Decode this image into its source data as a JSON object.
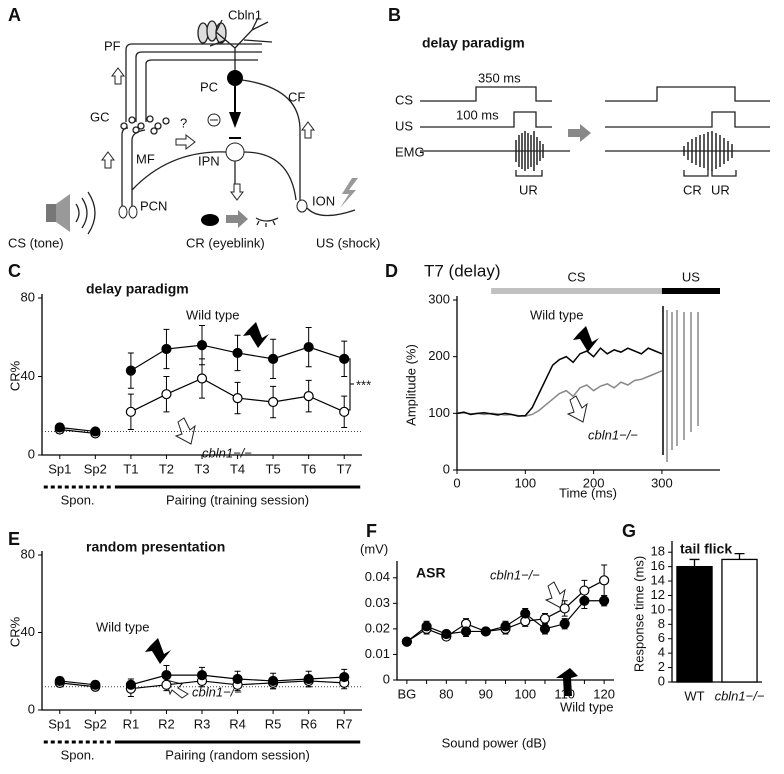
{
  "diagram_a": {
    "panel": "A",
    "labels": {
      "cbln1": "Cbln1",
      "pf": "PF",
      "gc": "GC",
      "pc": "PC",
      "cf": "CF",
      "mf": "MF",
      "question": "?",
      "ipn": "IPN",
      "pcn": "PCN",
      "ion": "ION",
      "cs": "CS (tone)",
      "cr": "CR (eyeblink)",
      "us": "US (shock)"
    }
  },
  "diagram_b": {
    "panel": "B",
    "title": "delay paradigm",
    "durations": [
      "350 ms",
      "100 ms"
    ],
    "rows": [
      "CS",
      "US",
      "EMG"
    ],
    "responses": [
      "UR",
      "CR",
      "UR"
    ]
  },
  "chart_data": [
    {
      "panel": "C",
      "type": "line",
      "title": "delay paradigm",
      "ylabel": "CR%",
      "markers": true,
      "line_color": "#000000",
      "categories": [
        "Sp1",
        "Sp2",
        "T1",
        "T2",
        "T3",
        "T4",
        "T5",
        "T6",
        "T7"
      ],
      "ylim": [
        0,
        80
      ],
      "yticks": [
        0,
        40,
        80
      ],
      "ref_line": 12,
      "groups": [
        {
          "label": "Spon.",
          "count": 2,
          "style": "dotted"
        },
        {
          "label": "Pairing (training session)",
          "count": 7,
          "style": "solid"
        }
      ],
      "series": [
        {
          "name": "Wild type",
          "color": "#000000",
          "values": [
            14,
            12,
            43,
            54,
            56,
            52,
            49,
            55,
            49
          ],
          "errors": [
            2,
            1.5,
            9,
            10,
            10,
            9,
            10,
            10,
            9
          ]
        },
        {
          "name": "cbln1−/−",
          "color": "#ffffff",
          "values": [
            13,
            11,
            22,
            31,
            39,
            29,
            27,
            30,
            22
          ],
          "errors": [
            2,
            1.5,
            9,
            9,
            10,
            8,
            8,
            8,
            8
          ]
        }
      ],
      "annotations": [
        "***"
      ]
    },
    {
      "panel": "D",
      "type": "line",
      "title": "T7 (delay)",
      "xlabel": "Time (ms)",
      "ylabel": "Amplitude (%)",
      "x": [
        0,
        10,
        20,
        30,
        40,
        50,
        60,
        70,
        80,
        90,
        100,
        110,
        120,
        130,
        140,
        150,
        160,
        170,
        180,
        190,
        200,
        210,
        220,
        230,
        240,
        250,
        260,
        270,
        280,
        290,
        300
      ],
      "xlim": [
        0,
        385
      ],
      "xticks": [
        0,
        100,
        200,
        300
      ],
      "ylim": [
        0,
        300
      ],
      "yticks": [
        0,
        100,
        200,
        300
      ],
      "spans": [
        {
          "label": "CS",
          "range": [
            50,
            300
          ],
          "color": "#c0c0c0"
        },
        {
          "label": "US",
          "range": [
            300,
            385
          ],
          "color": "#000000"
        }
      ],
      "series": [
        {
          "name": "Wild type",
          "color": "#000000",
          "values": [
            100,
            102,
            98,
            100,
            101,
            99,
            97,
            100,
            98,
            95,
            96,
            110,
            135,
            160,
            185,
            195,
            200,
            190,
            205,
            210,
            200,
            215,
            205,
            212,
            208,
            215,
            210,
            205,
            215,
            210,
            205
          ]
        },
        {
          "name": "cbln1−/−",
          "color": "#888888",
          "values": [
            100,
            101,
            99,
            100,
            98,
            100,
            99,
            97,
            98,
            96,
            95,
            98,
            105,
            115,
            125,
            135,
            140,
            130,
            145,
            150,
            140,
            148,
            152,
            145,
            155,
            150,
            158,
            160,
            165,
            170,
            175
          ]
        }
      ]
    },
    {
      "panel": "E",
      "type": "line",
      "title": "random presentation",
      "ylabel": "CR%",
      "markers": true,
      "line_color": "#000000",
      "categories": [
        "Sp1",
        "Sp2",
        "R1",
        "R2",
        "R3",
        "R4",
        "R5",
        "R6",
        "R7"
      ],
      "ylim": [
        0,
        80
      ],
      "yticks": [
        0,
        40,
        80
      ],
      "ref_line": 12,
      "groups": [
        {
          "label": "Spon.",
          "count": 2,
          "style": "dotted"
        },
        {
          "label": "Pairing (random session)",
          "count": 7,
          "style": "solid"
        }
      ],
      "series": [
        {
          "name": "Wild type",
          "color": "#000000",
          "values": [
            15,
            13,
            13,
            18,
            18,
            16,
            15,
            16,
            17
          ],
          "errors": [
            2,
            2,
            3,
            5,
            4,
            4,
            4,
            4,
            4
          ]
        },
        {
          "name": "cbln1−/−",
          "color": "#ffffff",
          "values": [
            14,
            12,
            11,
            13,
            15,
            13,
            14,
            15,
            14
          ],
          "errors": [
            2,
            2,
            4,
            3,
            3,
            3,
            3,
            3,
            3
          ]
        }
      ]
    },
    {
      "panel": "F",
      "type": "line",
      "title": "ASR",
      "xlabel": "Sound power (dB)",
      "ylabel": "(mV)",
      "markers": true,
      "line_color": "#000000",
      "categories": [
        "BG",
        null,
        "80",
        null,
        "90",
        null,
        "100",
        null,
        "110",
        null,
        "120"
      ],
      "ylim": [
        0,
        0.045
      ],
      "yticks": [
        0,
        0.01,
        0.02,
        0.03,
        0.04
      ],
      "series": [
        {
          "name": "Wild type",
          "color": "#000000",
          "values": [
            0.015,
            0.021,
            0.018,
            0.019,
            0.019,
            0.021,
            0.026,
            0.02,
            0.022,
            0.031,
            0.031
          ],
          "errors": [
            0.001,
            0.002,
            0.001,
            0.002,
            0.001,
            0.002,
            0.002,
            0.002,
            0.002,
            0.003,
            0.002
          ]
        },
        {
          "name": "cbln1−/−",
          "color": "#ffffff",
          "values": [
            0.015,
            0.02,
            0.017,
            0.022,
            0.019,
            0.02,
            0.023,
            0.024,
            0.028,
            0.035,
            0.039
          ],
          "errors": [
            0.001,
            0.002,
            0.001,
            0.002,
            0.001,
            0.002,
            0.002,
            0.002,
            0.003,
            0.004,
            0.006
          ]
        }
      ]
    },
    {
      "panel": "G",
      "type": "bar",
      "title": "tail flick",
      "ylabel": "Response time (ms)",
      "categories": [
        "WT",
        "cbln1−/−"
      ],
      "values": [
        16,
        17
      ],
      "errors": [
        1,
        0.8
      ],
      "colors": [
        "#000000",
        "#ffffff"
      ],
      "ylim": [
        0,
        19
      ],
      "yticks": [
        0,
        2,
        4,
        6,
        8,
        10,
        12,
        14,
        16,
        18
      ]
    }
  ]
}
